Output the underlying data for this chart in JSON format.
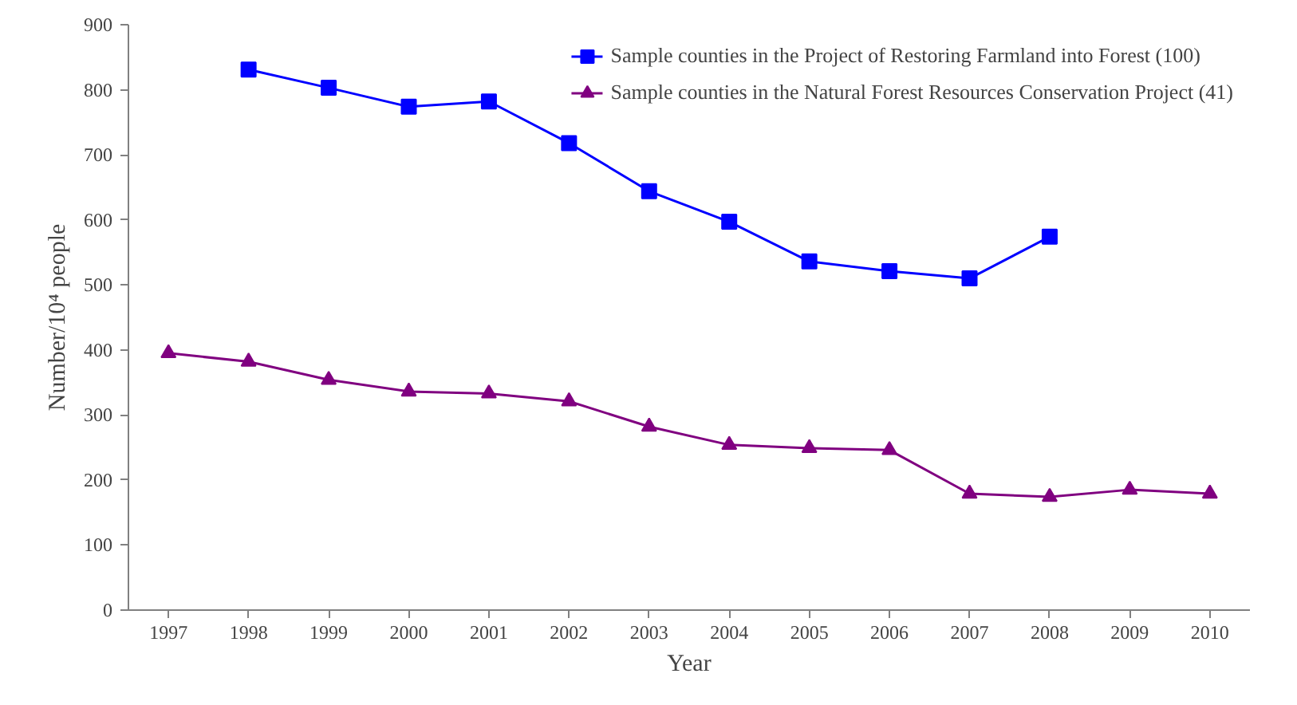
{
  "chart_data": {
    "type": "line",
    "xlabel": "Year",
    "ylabel": "Number/10⁴ people",
    "categories": [
      "1997",
      "1998",
      "1999",
      "2000",
      "2001",
      "2002",
      "2003",
      "2004",
      "2005",
      "2006",
      "2007",
      "2008",
      "2009",
      "2010"
    ],
    "series": [
      {
        "name": "Sample counties in the Project of Restoring Farmland into Forest (100)",
        "color": "#0000ff",
        "marker": "square",
        "values": [
          null,
          831,
          803,
          774,
          782,
          718,
          644,
          597,
          536,
          521,
          510,
          574,
          null,
          null
        ]
      },
      {
        "name": "Sample counties in the Natural Forest Resources Conservation Project (41)",
        "color": "#800080",
        "marker": "triangle",
        "values": [
          395,
          382,
          354,
          336,
          333,
          321,
          282,
          254,
          249,
          246,
          179,
          174,
          185,
          179
        ]
      }
    ],
    "ylim": [
      0,
      900
    ],
    "yticks": [
      0,
      100,
      200,
      300,
      400,
      500,
      600,
      700,
      800,
      900
    ],
    "grid": false,
    "legend": "top right",
    "line_style": "solid"
  }
}
